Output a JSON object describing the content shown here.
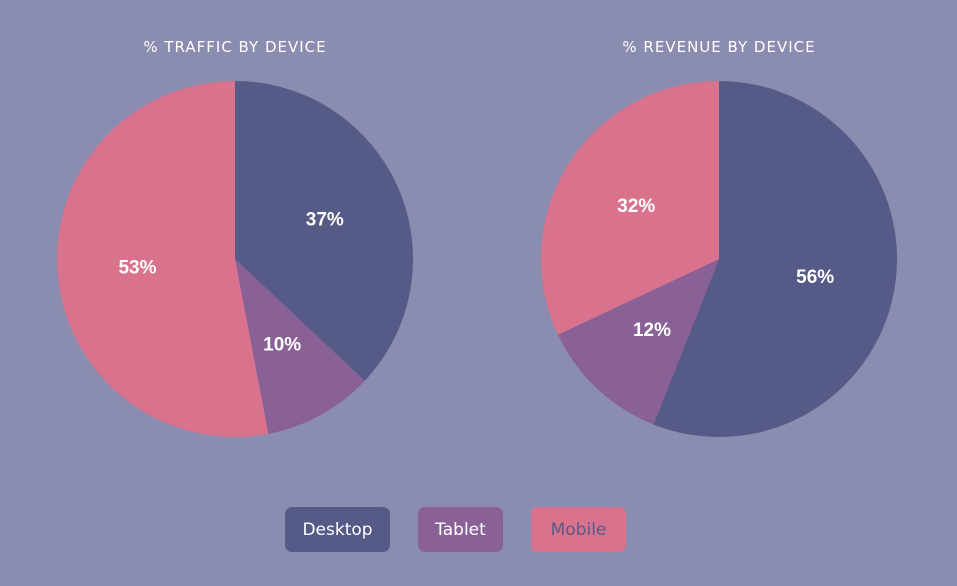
{
  "colors": {
    "background": "#8a8cb0",
    "desktop": "#565a87",
    "tablet": "#8a6196",
    "mobile": "#d9728d",
    "mobile_text": "#565a87"
  },
  "chart_data": [
    {
      "type": "pie",
      "title": "% TRAFFIC BY DEVICE",
      "labels": [
        "Desktop",
        "Tablet",
        "Mobile"
      ],
      "values": [
        37,
        10,
        53
      ],
      "value_labels": [
        "37%",
        "10%",
        "53%"
      ],
      "start": "top, clockwise"
    },
    {
      "type": "pie",
      "title": "% REVENUE BY DEVICE",
      "labels": [
        "Desktop",
        "Tablet",
        "Mobile"
      ],
      "values": [
        56,
        12,
        32
      ],
      "value_labels": [
        "56%",
        "12%",
        "32%"
      ],
      "start": "top, clockwise"
    }
  ],
  "legend": {
    "items": [
      {
        "label": "Desktop",
        "key": "desktop"
      },
      {
        "label": "Tablet",
        "key": "tablet"
      },
      {
        "label": "Mobile",
        "key": "mobile"
      }
    ]
  }
}
